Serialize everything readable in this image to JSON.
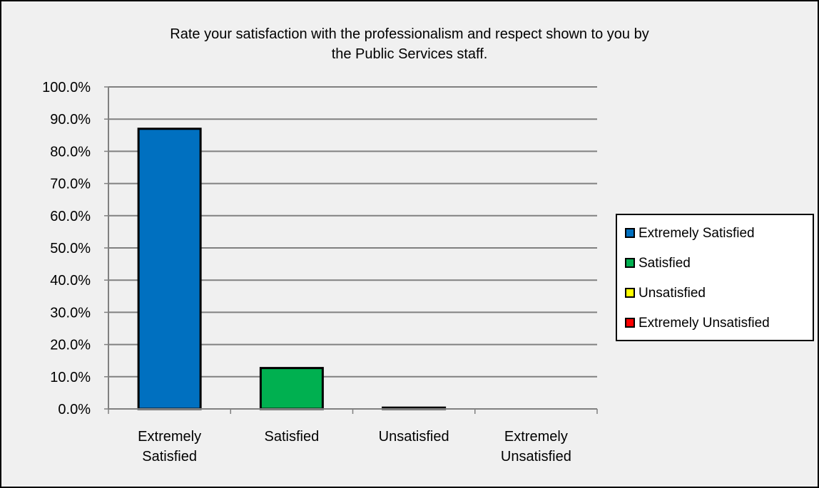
{
  "chart_data": {
    "type": "bar",
    "title_lines": [
      "Rate your satisfaction with the professionalism and respect shown to you by",
      "the Public Services staff."
    ],
    "categories": [
      [
        "Extremely",
        "Satisfied"
      ],
      [
        "Satisfied"
      ],
      [
        "Unsatisfied"
      ],
      [
        "Extremely",
        "Unsatisfied"
      ]
    ],
    "values": [
      87.0,
      12.7,
      0.4,
      0.0
    ],
    "colors": [
      "#0070c0",
      "#00b050",
      "#ffff00",
      "#ff0000"
    ],
    "ylim": [
      0,
      100
    ],
    "ytick_step": 10,
    "ytick_labels": [
      "0.0%",
      "10.0%",
      "20.0%",
      "30.0%",
      "40.0%",
      "50.0%",
      "60.0%",
      "70.0%",
      "80.0%",
      "90.0%",
      "100.0%"
    ],
    "grid": true,
    "legend": {
      "placement": "right",
      "entries": [
        "Extremely Satisfied",
        "Satisfied",
        "Unsatisfied",
        "Extremely Unsatisfied"
      ]
    },
    "background": "#f0f0f0",
    "gridline_color": "#808080"
  }
}
